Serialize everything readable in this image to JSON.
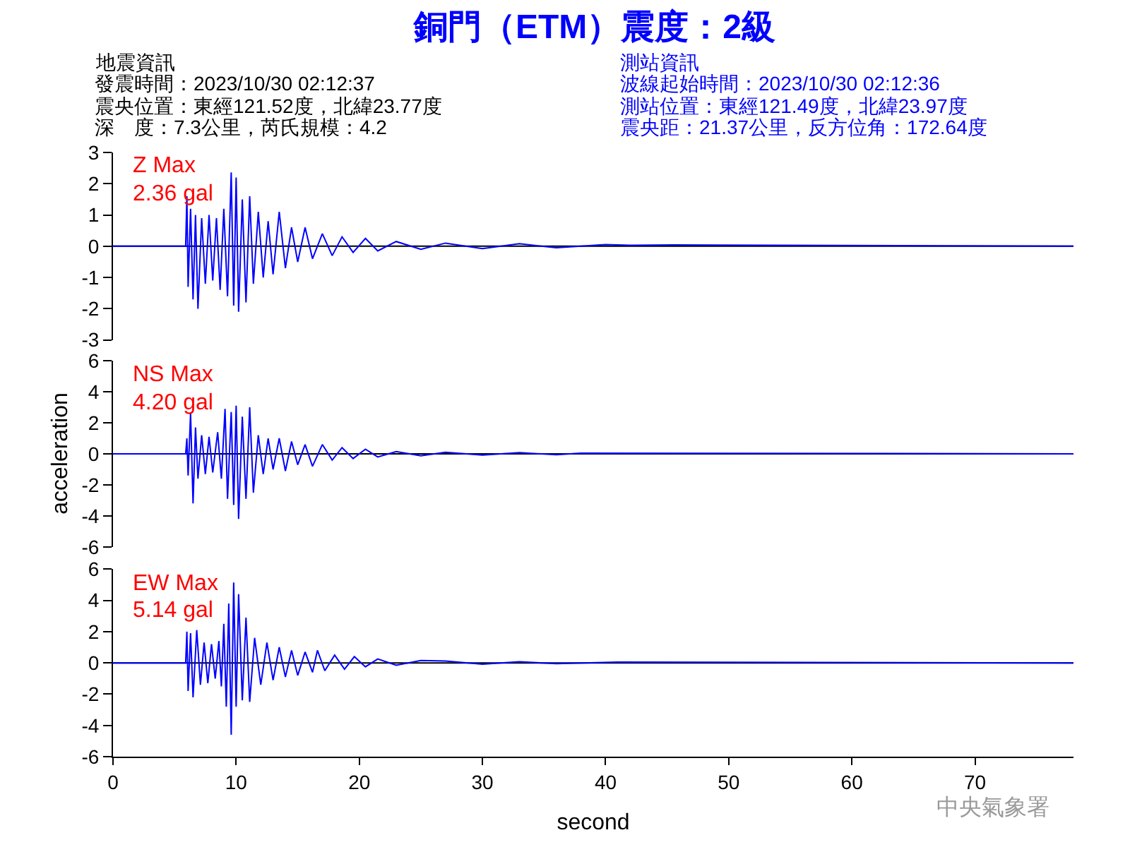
{
  "chart_data": [
    {
      "type": "line",
      "title": "銅門（ETM）震度：2級",
      "annotations": [
        "Z Max",
        "2.36 gal",
        "地震資訊",
        "發震時間：2023/10/30 02:12:37",
        "震央位置：東經121.52度，北緯23.77度",
        "深　度：7.3公里，芮氏規模：4.2",
        "測站資訊",
        "波線起始時間：2023/10/30 02:12:36",
        "測站位置：東經121.49度，北緯23.97度",
        "震央距：21.37公里，反方位角：172.64度"
      ],
      "x": [
        0,
        5.9,
        6.0,
        6.1,
        6.3,
        6.5,
        6.7,
        6.9,
        7.2,
        7.5,
        7.8,
        8.1,
        8.4,
        8.7,
        9.0,
        9.3,
        9.6,
        9.8,
        10.0,
        10.2,
        10.5,
        10.8,
        11.1,
        11.4,
        11.8,
        12.2,
        12.6,
        13.0,
        13.5,
        14.0,
        14.5,
        15.0,
        15.6,
        16.2,
        17.0,
        17.8,
        18.6,
        19.5,
        20.5,
        21.5,
        23,
        25,
        27,
        30,
        33,
        36,
        40,
        42,
        45.5,
        78
      ],
      "series": [
        {
          "color": "#0000ff",
          "values": [
            0,
            0,
            1.6,
            -1.3,
            1.2,
            -1.7,
            1.0,
            -2.0,
            0.9,
            -1.2,
            1.0,
            -1.1,
            0.9,
            -1.4,
            1.2,
            -1.6,
            2.36,
            -1.9,
            2.2,
            -2.1,
            1.5,
            -1.8,
            1.6,
            -1.2,
            1.1,
            -1.0,
            0.8,
            -0.9,
            1.1,
            -0.7,
            0.6,
            -0.5,
            0.6,
            -0.4,
            0.4,
            -0.3,
            0.3,
            -0.2,
            0.25,
            -0.15,
            0.15,
            -0.1,
            0.1,
            -0.08,
            0.08,
            -0.05,
            0.05,
            0.03,
            0.04,
            0
          ]
        }
      ],
      "xlim": [
        0,
        78
      ],
      "xticks": [
        0,
        10,
        20,
        30,
        40,
        50,
        60,
        70
      ],
      "ylim": [
        -3,
        3
      ],
      "yticks": [
        -3,
        -2,
        -1,
        0,
        1,
        2,
        3
      ],
      "ref_lines": [
        {
          "axis": "y",
          "value": 0,
          "color": "#000000"
        }
      ],
      "tick_labels": "y"
    },
    {
      "type": "line",
      "ylabel": "acceleration",
      "annotations": [
        "NS Max",
        "4.20 gal"
      ],
      "x": [
        0,
        5.9,
        6.0,
        6.1,
        6.3,
        6.5,
        6.7,
        6.9,
        7.2,
        7.5,
        7.8,
        8.1,
        8.5,
        8.8,
        9.1,
        9.3,
        9.6,
        9.8,
        10.0,
        10.2,
        10.5,
        10.8,
        11.1,
        11.4,
        11.8,
        12.2,
        12.6,
        13.0,
        13.5,
        14.0,
        14.5,
        15.0,
        15.6,
        16.2,
        17.0,
        17.8,
        18.6,
        19.5,
        20.5,
        21.5,
        23,
        25,
        27,
        30,
        33,
        36,
        38,
        78
      ],
      "series": [
        {
          "color": "#0000ff",
          "values": [
            0,
            0,
            1.0,
            -1.4,
            2.6,
            -3.2,
            1.7,
            -1.6,
            1.2,
            -1.3,
            1.1,
            -1.2,
            1.4,
            -1.6,
            2.9,
            -2.9,
            2.7,
            -3.3,
            3.1,
            -4.2,
            2.4,
            -2.9,
            3.0,
            -2.5,
            1.2,
            -1.3,
            1.0,
            -1.0,
            1.0,
            -1.1,
            0.8,
            -0.7,
            0.6,
            -0.8,
            0.6,
            -0.4,
            0.4,
            -0.3,
            0.3,
            -0.2,
            0.15,
            -0.12,
            0.1,
            -0.08,
            0.08,
            -0.06,
            0.05,
            0
          ]
        }
      ],
      "xlim": [
        0,
        78
      ],
      "xticks": [
        0,
        10,
        20,
        30,
        40,
        50,
        60,
        70
      ],
      "ylim": [
        -6,
        6
      ],
      "yticks": [
        -6,
        -4,
        -2,
        0,
        2,
        4,
        6
      ],
      "ref_lines": [
        {
          "axis": "y",
          "value": 0,
          "color": "#000000"
        }
      ],
      "tick_labels": "y"
    },
    {
      "type": "line",
      "xlabel": "second",
      "annotations": [
        "EW Max",
        "5.14 gal",
        "中央氣象署"
      ],
      "x": [
        0,
        5.9,
        6.0,
        6.1,
        6.3,
        6.5,
        6.8,
        7.1,
        7.4,
        7.7,
        8.0,
        8.3,
        8.6,
        8.8,
        9.0,
        9.2,
        9.4,
        9.6,
        9.8,
        10.0,
        10.2,
        10.5,
        10.8,
        11.1,
        11.5,
        12.0,
        12.5,
        13.0,
        13.5,
        14.0,
        14.5,
        15.0,
        15.6,
        16.2,
        16.6,
        17.2,
        18.0,
        18.8,
        19.6,
        20.5,
        21.5,
        23,
        25,
        27,
        30,
        33,
        36,
        41,
        78
      ],
      "series": [
        {
          "color": "#0000ff",
          "values": [
            0,
            0,
            2.0,
            -1.8,
            1.9,
            -2.2,
            2.1,
            -1.4,
            1.3,
            -1.3,
            1.2,
            -1.0,
            1.4,
            -1.5,
            2.5,
            -2.8,
            3.8,
            -4.6,
            5.14,
            -2.8,
            4.4,
            -2.4,
            2.9,
            -2.5,
            1.6,
            -1.4,
            1.3,
            -1.1,
            1.0,
            -0.9,
            0.8,
            -0.8,
            0.7,
            -0.6,
            0.8,
            -0.5,
            0.5,
            -0.4,
            0.4,
            -0.25,
            0.25,
            -0.15,
            0.15,
            0.12,
            -0.08,
            0.07,
            -0.05,
            0.05,
            0
          ]
        }
      ],
      "xlim": [
        0,
        78
      ],
      "xticks": [
        0,
        10,
        20,
        30,
        40,
        50,
        60,
        70
      ],
      "ylim": [
        -6,
        6
      ],
      "yticks": [
        -6,
        -4,
        -2,
        0,
        2,
        4,
        6
      ],
      "ref_lines": [
        {
          "axis": "y",
          "value": 0,
          "color": "#000000"
        }
      ]
    }
  ]
}
